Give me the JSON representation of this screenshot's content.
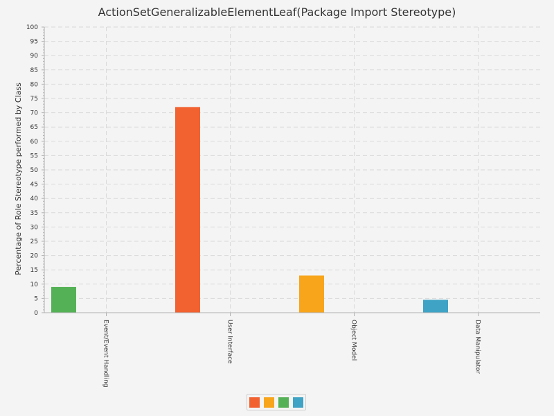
{
  "chart_data": {
    "type": "bar",
    "title": "ActionSetGeneralizableElementLeaf(Package Import Stereotype)",
    "xlabel": "",
    "ylabel": "Percentage of Role Stereotype performed by Class",
    "ylim": [
      0,
      100
    ],
    "y_ticks": [
      0,
      5,
      10,
      15,
      20,
      25,
      30,
      35,
      40,
      45,
      50,
      55,
      60,
      65,
      70,
      75,
      80,
      85,
      90,
      95,
      100
    ],
    "categories": [
      "Event/Event Handling",
      "User Interface",
      "Object Model",
      "Data Manipulator"
    ],
    "series": [
      {
        "color": "#f26130",
        "values": [
          0,
          72,
          0,
          0
        ]
      },
      {
        "color": "#f8a51c",
        "values": [
          0,
          0,
          13,
          0
        ]
      },
      {
        "color": "#55b156",
        "values": [
          9,
          0,
          0,
          0
        ]
      },
      {
        "color": "#3ea3c5",
        "values": [
          0,
          0,
          0,
          4.5
        ]
      }
    ],
    "bars": [
      {
        "category": "Event/Event Handling",
        "value": 9,
        "color": "#55b156"
      },
      {
        "category": "User Interface",
        "value": 72,
        "color": "#f26130"
      },
      {
        "category": "Object Model",
        "value": 13,
        "color": "#f8a51c"
      },
      {
        "category": "Data Manipulator",
        "value": 4.5,
        "color": "#3ea3c5"
      }
    ],
    "grid": true,
    "legend_position": "bottom",
    "legend_colors": [
      "#f26130",
      "#f8a51c",
      "#55b156",
      "#3ea3c5"
    ]
  }
}
